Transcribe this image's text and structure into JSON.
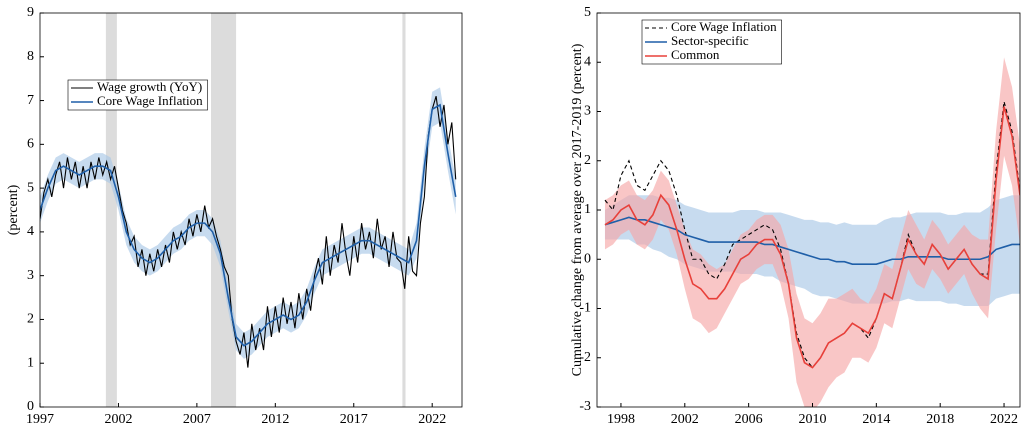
{
  "chart_data": [
    {
      "type": "line",
      "y_label": "(percent)",
      "xlim": [
        1997,
        2023.9
      ],
      "xticks": [
        1997,
        2002,
        2007,
        2012,
        2017,
        2022
      ],
      "ylim": [
        0,
        9
      ],
      "yticks": [
        0,
        1,
        2,
        3,
        4,
        5,
        6,
        7,
        8,
        9
      ],
      "grid": false,
      "legend": "upper-left",
      "shaded_periods": [
        [
          2001.2,
          2001.9
        ],
        [
          2007.9,
          2009.5
        ],
        [
          2020.1,
          2020.3
        ]
      ],
      "shade_color": "#dcdcdc",
      "series": [
        {
          "name": "Wage growth (YoY)",
          "color": "#000000",
          "x": [
            1997,
            1997.25,
            1997.5,
            1997.75,
            1998,
            1998.25,
            1998.5,
            1998.75,
            1999,
            1999.25,
            1999.5,
            1999.75,
            2000,
            2000.25,
            2000.5,
            2000.75,
            2001,
            2001.25,
            2001.5,
            2001.75,
            2002,
            2002.25,
            2002.5,
            2002.75,
            2003,
            2003.25,
            2003.5,
            2003.75,
            2004,
            2004.25,
            2004.5,
            2004.75,
            2005,
            2005.25,
            2005.5,
            2005.75,
            2006,
            2006.25,
            2006.5,
            2006.75,
            2007,
            2007.25,
            2007.5,
            2007.75,
            2008,
            2008.25,
            2008.5,
            2008.75,
            2009,
            2009.25,
            2009.5,
            2009.75,
            2010,
            2010.25,
            2010.5,
            2010.75,
            2011,
            2011.25,
            2011.5,
            2011.75,
            2012,
            2012.25,
            2012.5,
            2012.75,
            2013,
            2013.25,
            2013.5,
            2013.75,
            2014,
            2014.25,
            2014.5,
            2014.75,
            2015,
            2015.25,
            2015.5,
            2015.75,
            2016,
            2016.25,
            2016.5,
            2016.75,
            2017,
            2017.25,
            2017.5,
            2017.75,
            2018,
            2018.25,
            2018.5,
            2018.75,
            2019,
            2019.25,
            2019.5,
            2019.75,
            2020,
            2020.25,
            2020.5,
            2020.75,
            2021,
            2021.25,
            2021.5,
            2021.75,
            2022,
            2022.25,
            2022.5,
            2022.75,
            2023,
            2023.25,
            2023.5
          ],
          "values": [
            4.3,
            4.9,
            5.2,
            4.8,
            5.3,
            5.6,
            5.0,
            5.7,
            5.2,
            5.6,
            5.0,
            5.5,
            5.0,
            5.6,
            5.2,
            5.7,
            5.3,
            5.6,
            5.2,
            5.5,
            5.0,
            4.5,
            4.2,
            3.7,
            3.9,
            3.2,
            3.6,
            3.0,
            3.5,
            3.1,
            3.6,
            3.2,
            3.7,
            3.3,
            4.0,
            3.6,
            4.0,
            3.7,
            4.3,
            3.9,
            4.4,
            4.0,
            4.6,
            4.1,
            4.3,
            3.9,
            3.6,
            3.2,
            3.0,
            2.0,
            1.5,
            1.2,
            1.7,
            0.9,
            1.9,
            1.3,
            1.8,
            1.3,
            2.3,
            1.6,
            2.3,
            1.7,
            2.5,
            1.9,
            2.4,
            1.8,
            2.6,
            2.0,
            2.7,
            2.2,
            3.0,
            3.4,
            2.8,
            3.9,
            3.0,
            3.7,
            3.3,
            4.2,
            3.5,
            3.0,
            3.9,
            3.3,
            4.2,
            3.6,
            4.0,
            3.4,
            4.3,
            3.6,
            3.9,
            3.2,
            4.0,
            3.4,
            3.3,
            2.7,
            3.9,
            3.1,
            3.0,
            4.2,
            4.8,
            6.2,
            6.8,
            7.1,
            6.4,
            6.9,
            6.0,
            6.5,
            5.2
          ]
        },
        {
          "name": "Core Wage Inflation",
          "color": "#1f5fa8",
          "band_color": "#a9c7e6",
          "x": [
            1997,
            1997.5,
            1998,
            1998.5,
            1999,
            1999.5,
            2000,
            2000.5,
            2001,
            2001.5,
            2002,
            2002.5,
            2003,
            2003.5,
            2004,
            2004.5,
            2005,
            2005.5,
            2006,
            2006.5,
            2007,
            2007.5,
            2008,
            2008.5,
            2009,
            2009.5,
            2010,
            2010.5,
            2011,
            2011.5,
            2012,
            2012.5,
            2013,
            2013.5,
            2014,
            2014.5,
            2015,
            2015.5,
            2016,
            2016.5,
            2017,
            2017.5,
            2018,
            2018.5,
            2019,
            2019.5,
            2020,
            2020.5,
            2021,
            2021.5,
            2022,
            2022.5,
            2023,
            2023.5
          ],
          "values": [
            4.5,
            5.0,
            5.4,
            5.5,
            5.4,
            5.3,
            5.4,
            5.5,
            5.5,
            5.4,
            4.8,
            4.0,
            3.6,
            3.4,
            3.3,
            3.4,
            3.6,
            3.8,
            3.9,
            4.1,
            4.2,
            4.2,
            4.0,
            3.5,
            2.5,
            1.6,
            1.4,
            1.5,
            1.7,
            1.9,
            2.0,
            2.1,
            2.0,
            2.1,
            2.4,
            2.9,
            3.3,
            3.4,
            3.5,
            3.6,
            3.7,
            3.8,
            3.8,
            3.7,
            3.6,
            3.5,
            3.4,
            3.3,
            3.8,
            5.5,
            6.8,
            6.9,
            5.8,
            4.8
          ],
          "band": [
            0.3,
            0.3,
            0.3,
            0.3,
            0.3,
            0.3,
            0.3,
            0.3,
            0.3,
            0.3,
            0.3,
            0.3,
            0.3,
            0.3,
            0.3,
            0.3,
            0.3,
            0.3,
            0.3,
            0.3,
            0.3,
            0.3,
            0.3,
            0.3,
            0.3,
            0.3,
            0.3,
            0.3,
            0.3,
            0.3,
            0.3,
            0.3,
            0.3,
            0.3,
            0.3,
            0.3,
            0.3,
            0.3,
            0.3,
            0.3,
            0.3,
            0.3,
            0.3,
            0.3,
            0.3,
            0.3,
            0.3,
            0.3,
            0.4,
            0.4,
            0.4,
            0.4,
            0.4,
            0.4
          ]
        }
      ]
    },
    {
      "type": "line",
      "y_label": "Cumulative change from average over 2017-2019 (percent)",
      "xlim": [
        1996.5,
        2023.0
      ],
      "xticks": [
        1998,
        2002,
        2006,
        2010,
        2014,
        2018,
        2022
      ],
      "ylim": [
        -3,
        5
      ],
      "yticks": [
        -3,
        -2,
        -1,
        0,
        1,
        2,
        3,
        4,
        5
      ],
      "grid": false,
      "legend": "upper-left",
      "x": [
        1997,
        1997.5,
        1998,
        1998.5,
        1999,
        1999.5,
        2000,
        2000.5,
        2001,
        2001.5,
        2002,
        2002.5,
        2003,
        2003.5,
        2004,
        2004.5,
        2005,
        2005.5,
        2006,
        2006.5,
        2007,
        2007.5,
        2008,
        2008.5,
        2009,
        2009.5,
        2010,
        2010.5,
        2011,
        2011.5,
        2012,
        2012.5,
        2013,
        2013.5,
        2014,
        2014.5,
        2015,
        2015.5,
        2016,
        2016.5,
        2017,
        2017.5,
        2018,
        2018.5,
        2019,
        2019.5,
        2020,
        2020.5,
        2021,
        2021.5,
        2022,
        2022.5,
        2023
      ],
      "series": [
        {
          "name": "Core Wage Inflation",
          "color": "#000000",
          "dashed": true,
          "values": [
            1.2,
            1.0,
            1.7,
            2.0,
            1.5,
            1.4,
            1.7,
            2.0,
            1.8,
            1.3,
            0.6,
            0.0,
            0.0,
            -0.3,
            -0.4,
            -0.1,
            0.3,
            0.4,
            0.5,
            0.6,
            0.7,
            0.6,
            0.2,
            -0.5,
            -1.5,
            -2.0,
            -2.2,
            -2.0,
            -1.7,
            -1.6,
            -1.5,
            -1.3,
            -1.4,
            -1.6,
            -1.2,
            -0.7,
            -0.8,
            -0.2,
            0.5,
            0.1,
            -0.1,
            0.3,
            0.1,
            -0.2,
            0.0,
            0.2,
            -0.1,
            -0.3,
            -0.3,
            1.8,
            3.2,
            2.6,
            1.4
          ]
        },
        {
          "name": "Sector-specific",
          "color": "#1f5fa8",
          "band_color": "#a9c7e6",
          "values": [
            0.7,
            0.75,
            0.8,
            0.85,
            0.8,
            0.8,
            0.75,
            0.7,
            0.65,
            0.6,
            0.5,
            0.45,
            0.4,
            0.35,
            0.35,
            0.35,
            0.35,
            0.35,
            0.35,
            0.35,
            0.3,
            0.3,
            0.25,
            0.2,
            0.15,
            0.1,
            0.05,
            0.0,
            0.0,
            -0.05,
            -0.05,
            -0.1,
            -0.1,
            -0.1,
            -0.1,
            -0.05,
            0.0,
            0.0,
            0.05,
            0.05,
            0.05,
            0.05,
            0.05,
            0.0,
            0.0,
            0.0,
            0.0,
            0.0,
            0.05,
            0.2,
            0.25,
            0.3,
            0.3
          ],
          "band": [
            0.3,
            0.35,
            0.4,
            0.45,
            0.5,
            0.5,
            0.55,
            0.55,
            0.6,
            0.6,
            0.6,
            0.6,
            0.6,
            0.6,
            0.6,
            0.6,
            0.6,
            0.65,
            0.65,
            0.65,
            0.65,
            0.65,
            0.7,
            0.7,
            0.7,
            0.7,
            0.75,
            0.75,
            0.75,
            0.75,
            0.8,
            0.8,
            0.8,
            0.8,
            0.8,
            0.85,
            0.85,
            0.85,
            0.85,
            0.9,
            0.9,
            0.9,
            0.9,
            0.9,
            0.9,
            0.95,
            0.95,
            0.95,
            1.0,
            1.0,
            1.0,
            1.0,
            1.0
          ]
        },
        {
          "name": "Common",
          "color": "#e8403a",
          "band_color": "#f6a8a8",
          "values": [
            0.7,
            0.8,
            1.0,
            1.1,
            0.8,
            0.7,
            0.9,
            1.3,
            1.1,
            0.6,
            0.0,
            -0.5,
            -0.6,
            -0.8,
            -0.8,
            -0.6,
            -0.3,
            0.0,
            0.1,
            0.3,
            0.4,
            0.4,
            0.1,
            -0.5,
            -1.6,
            -2.1,
            -2.2,
            -2.0,
            -1.7,
            -1.6,
            -1.5,
            -1.3,
            -1.4,
            -1.5,
            -1.2,
            -0.7,
            -0.8,
            -0.2,
            0.4,
            0.1,
            -0.1,
            0.3,
            0.1,
            -0.2,
            0.0,
            0.2,
            -0.1,
            -0.3,
            -0.4,
            1.6,
            3.1,
            2.5,
            1.3
          ],
          "band": [
            0.5,
            0.5,
            0.5,
            0.5,
            0.5,
            0.5,
            0.5,
            0.5,
            0.5,
            0.5,
            0.6,
            0.7,
            0.7,
            0.7,
            0.6,
            0.5,
            0.5,
            0.5,
            0.5,
            0.5,
            0.5,
            0.5,
            0.6,
            0.7,
            0.9,
            0.9,
            0.9,
            0.9,
            0.9,
            0.8,
            0.8,
            0.7,
            0.6,
            0.6,
            0.6,
            0.6,
            0.6,
            0.6,
            0.6,
            0.6,
            0.5,
            0.5,
            0.5,
            0.5,
            0.5,
            0.5,
            0.6,
            0.7,
            0.8,
            1.0,
            1.0,
            1.0,
            1.0
          ]
        }
      ]
    }
  ]
}
